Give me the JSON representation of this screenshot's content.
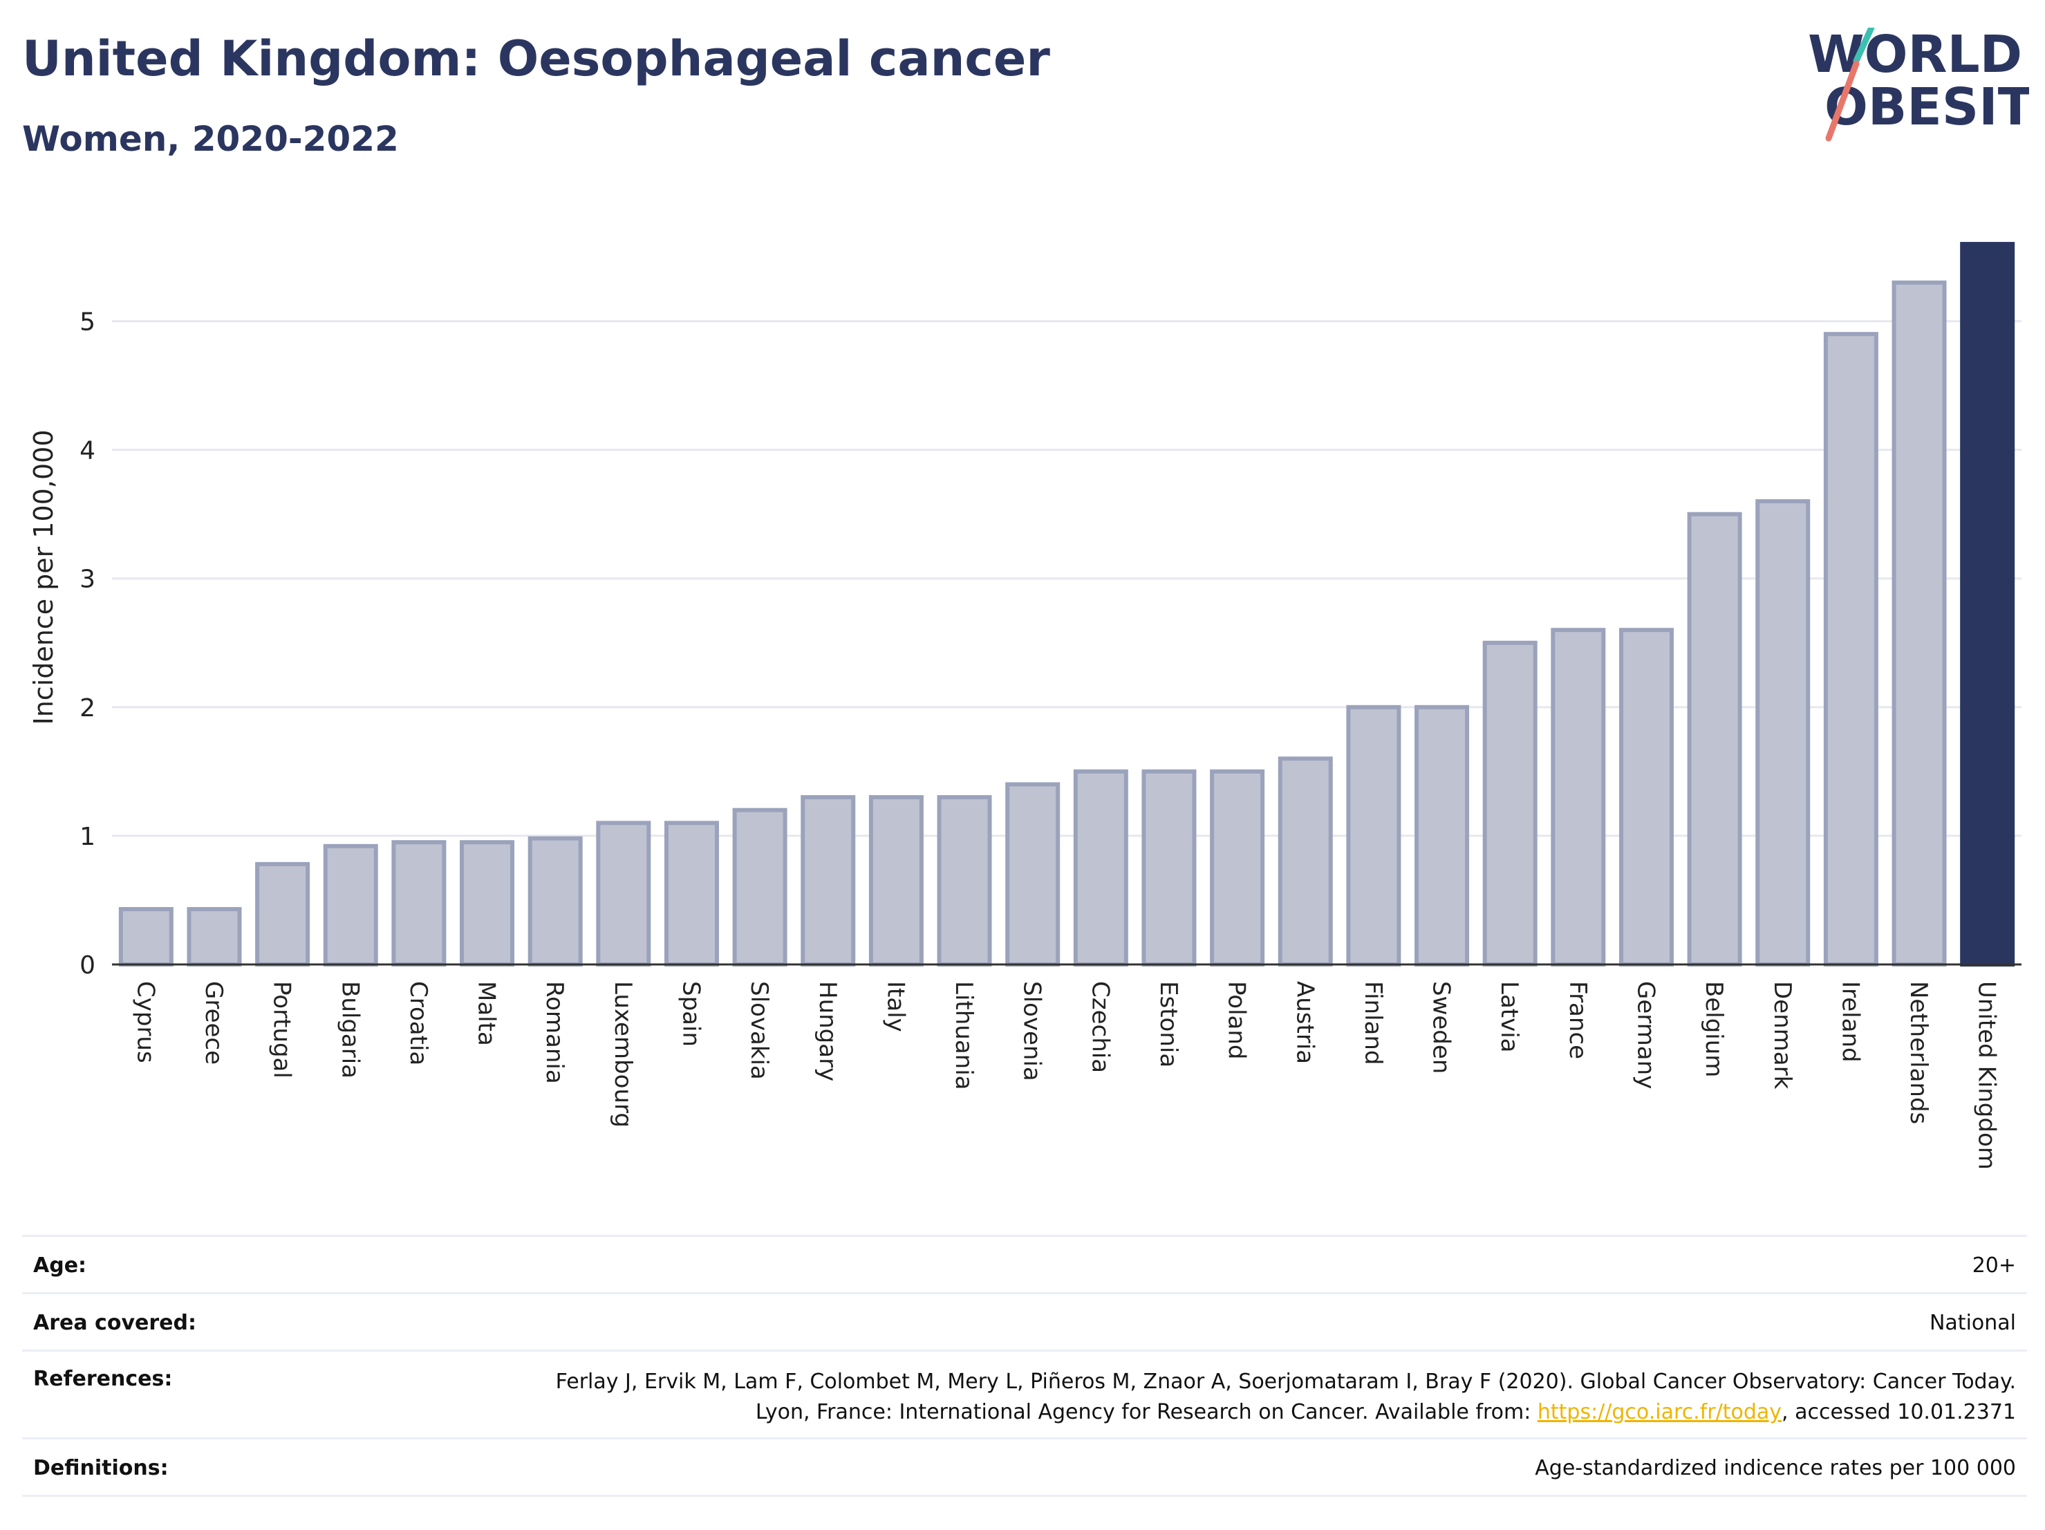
{
  "header": {
    "title": "United Kingdom: Oesophageal cancer",
    "subtitle": "Women, 2020-2022"
  },
  "logo": {
    "line1": "WORLD",
    "line2": "OBESITY"
  },
  "colors": {
    "bar_fill": "#bfc3d1",
    "bar_stroke": "#9ba2bb",
    "highlight": "#2b3660",
    "grid": "#e6e8ee",
    "logo_teal": "#3dbfb2",
    "logo_coral": "#e8776b"
  },
  "chart_data": {
    "type": "bar",
    "ylabel": "Incidence per 100,000",
    "xlabel": "",
    "ylim": [
      0,
      5.75
    ],
    "yticks": [
      0,
      1,
      2,
      3,
      4,
      5
    ],
    "grid": true,
    "highlight_category": "United Kingdom",
    "categories": [
      "Cyprus",
      "Greece",
      "Portugal",
      "Bulgaria",
      "Croatia",
      "Malta",
      "Romania",
      "Luxembourg",
      "Spain",
      "Slovakia",
      "Hungary",
      "Italy",
      "Lithuania",
      "Slovenia",
      "Czechia",
      "Estonia",
      "Poland",
      "Austria",
      "Finland",
      "Sweden",
      "Latvia",
      "France",
      "Germany",
      "Belgium",
      "Denmark",
      "Ireland",
      "Netherlands",
      "United Kingdom"
    ],
    "values": [
      0.43,
      0.43,
      0.78,
      0.92,
      0.95,
      0.95,
      0.98,
      1.1,
      1.1,
      1.2,
      1.3,
      1.3,
      1.3,
      1.4,
      1.5,
      1.5,
      1.5,
      1.6,
      2.0,
      2.0,
      2.5,
      2.6,
      2.6,
      3.5,
      3.6,
      4.9,
      5.3,
      5.6
    ]
  },
  "info": {
    "age": {
      "label": "Age:",
      "value": "20+"
    },
    "area": {
      "label": "Area covered:",
      "value": "National"
    },
    "references": {
      "label": "References:",
      "text_before": "Ferlay J, Ervik M, Lam F, Colombet M, Mery L, Piñeros M, Znaor A, Soerjomataram I, Bray F (2020). Global Cancer Observatory: Cancer Today. Lyon, France: International Agency for Research on Cancer. Available from: ",
      "link": "https://gco.iarc.fr/today",
      "text_after": ", accessed 10.01.2371"
    },
    "definitions": {
      "label": "Definitions:",
      "value": "Age-standardized indicence rates per 100 000"
    }
  }
}
